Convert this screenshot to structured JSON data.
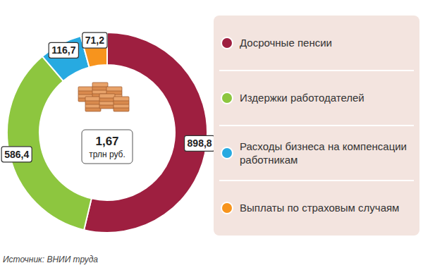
{
  "chart_data": {
    "type": "donut",
    "categories": [
      "Досрочные пенсии",
      "Издержки работодателей",
      "Расходы бизнеса на компенсации работникам",
      "Выплаты по страховым случаям"
    ],
    "values": [
      898.8,
      586.4,
      116.7,
      71.2
    ],
    "value_labels": [
      "898,8",
      "586,4",
      "116,7",
      "71,2"
    ],
    "colors": [
      "#9e1f40",
      "#8dc63f",
      "#27aae1",
      "#f7941d"
    ],
    "data_labels": true,
    "legend": "right",
    "total_label": "1,67",
    "total_unit": "трлн руб.",
    "source": "Источник: ВНИИ труда"
  }
}
